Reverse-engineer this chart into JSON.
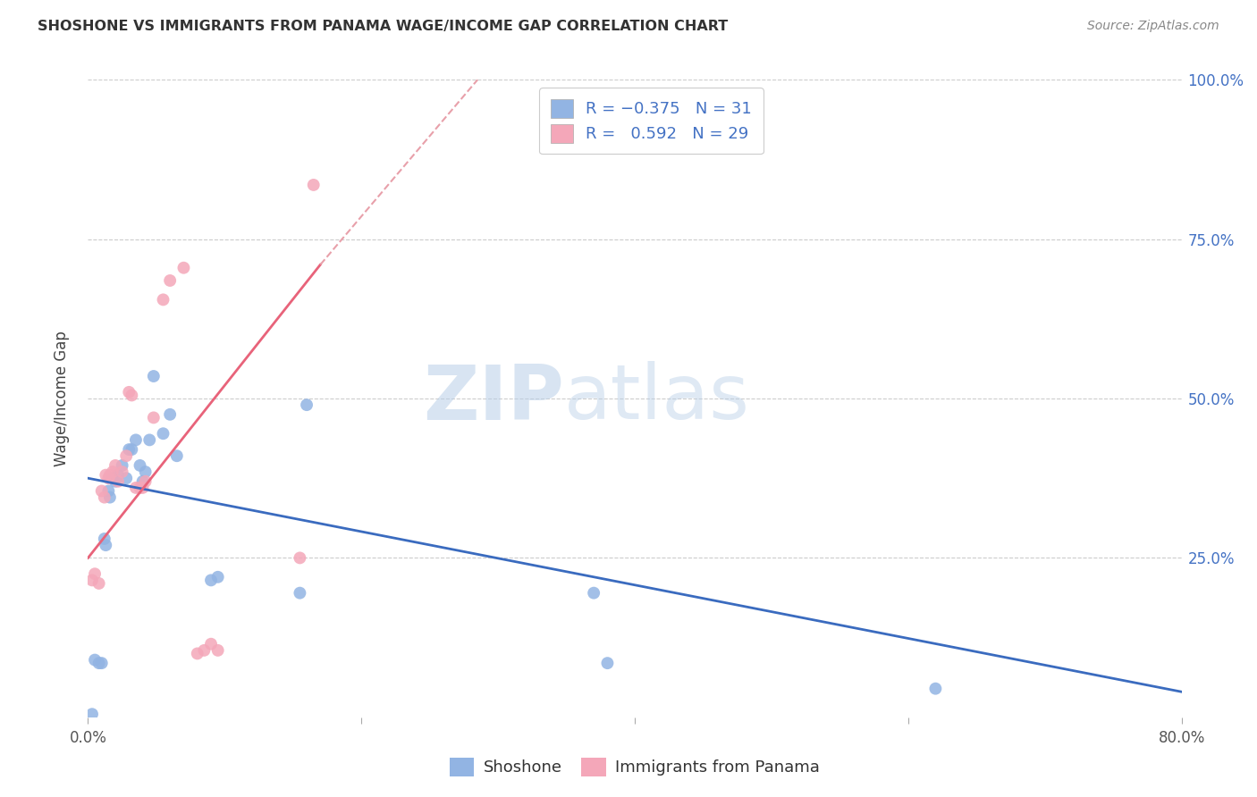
{
  "title": "SHOSHONE VS IMMIGRANTS FROM PANAMA WAGE/INCOME GAP CORRELATION CHART",
  "source": "Source: ZipAtlas.com",
  "ylabel": "Wage/Income Gap",
  "xlim": [
    0.0,
    0.8
  ],
  "ylim": [
    0.0,
    1.0
  ],
  "shoshone_color": "#92b4e3",
  "panama_color": "#f4a7b9",
  "shoshone_line_color": "#3a6bbf",
  "panama_line_color": "#e8637a",
  "panama_dashed_color": "#e8a0aa",
  "legend_label1": "Shoshone",
  "legend_label2": "Immigrants from Panama",
  "R1": "-0.375",
  "N1": "31",
  "R2": "0.592",
  "N2": "29",
  "shoshone_x": [
    0.003,
    0.005,
    0.008,
    0.01,
    0.012,
    0.013,
    0.015,
    0.016,
    0.018,
    0.02,
    0.022,
    0.025,
    0.028,
    0.03,
    0.032,
    0.035,
    0.038,
    0.04,
    0.042,
    0.045,
    0.048,
    0.055,
    0.06,
    0.065,
    0.09,
    0.095,
    0.155,
    0.16,
    0.37,
    0.38,
    0.62
  ],
  "shoshone_y": [
    0.005,
    0.09,
    0.085,
    0.085,
    0.28,
    0.27,
    0.355,
    0.345,
    0.375,
    0.37,
    0.38,
    0.395,
    0.375,
    0.42,
    0.42,
    0.435,
    0.395,
    0.37,
    0.385,
    0.435,
    0.535,
    0.445,
    0.475,
    0.41,
    0.215,
    0.22,
    0.195,
    0.49,
    0.195,
    0.085,
    0.045
  ],
  "panama_x": [
    0.003,
    0.005,
    0.008,
    0.01,
    0.012,
    0.013,
    0.015,
    0.016,
    0.018,
    0.02,
    0.022,
    0.025,
    0.028,
    0.03,
    0.032,
    0.035,
    0.038,
    0.04,
    0.042,
    0.048,
    0.055,
    0.06,
    0.07,
    0.08,
    0.085,
    0.09,
    0.095,
    0.155,
    0.165
  ],
  "panama_y": [
    0.215,
    0.225,
    0.21,
    0.355,
    0.345,
    0.38,
    0.375,
    0.38,
    0.385,
    0.395,
    0.37,
    0.385,
    0.41,
    0.51,
    0.505,
    0.36,
    0.36,
    0.36,
    0.37,
    0.47,
    0.655,
    0.685,
    0.705,
    0.1,
    0.105,
    0.115,
    0.105,
    0.25,
    0.835
  ],
  "blue_line_x0": 0.0,
  "blue_line_y0": 0.375,
  "blue_line_x1": 0.8,
  "blue_line_y1": 0.04,
  "pink_line_solid_x0": 0.0,
  "pink_line_solid_y0": 0.25,
  "pink_line_solid_x1": 0.17,
  "pink_line_solid_y1": 0.71,
  "pink_line_dash_x0": 0.17,
  "pink_line_dash_y0": 0.71,
  "pink_line_dash_x1": 0.285,
  "pink_line_dash_y1": 1.0,
  "watermark_zip": "ZIP",
  "watermark_atlas": "atlas",
  "background_color": "#ffffff",
  "grid_color": "#cccccc"
}
